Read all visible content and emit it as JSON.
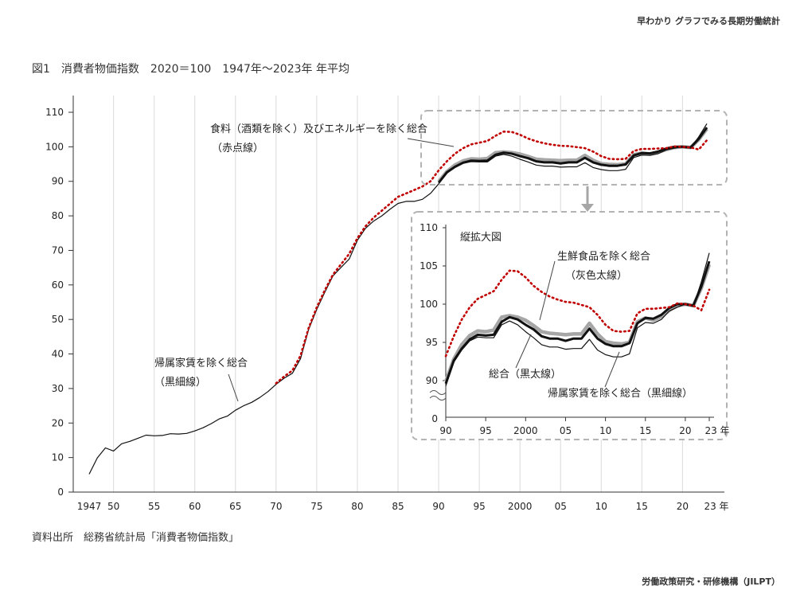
{
  "header": {
    "publication": "早わかり グラフでみる長期労働統計"
  },
  "figure": {
    "title": "図1　消費者物価指数　2020＝100　1947年～2023年 年平均",
    "source": "資料出所　総務省統計局「消費者物価指数」"
  },
  "footer": {
    "organization": "労働政策研究・研修機構（JILPT）"
  },
  "colors": {
    "total": "#111111",
    "core": "#a6a6a6",
    "excl_food_energy": "#c00000",
    "rent": "#111111",
    "grid": "#d9d9d9",
    "frame": "#b3b3b3"
  },
  "chart_data": [
    {
      "type": "line",
      "title": "",
      "ylim": [
        0,
        110
      ],
      "yticks": [
        0,
        10,
        20,
        30,
        40,
        50,
        60,
        70,
        80,
        90,
        100,
        110
      ],
      "xlim": [
        1947,
        2023
      ],
      "xtick_labels": [
        {
          "year": 1947,
          "label": "1947"
        },
        {
          "year": 1950,
          "label": "50"
        },
        {
          "year": 1955,
          "label": "55"
        },
        {
          "year": 1960,
          "label": "60"
        },
        {
          "year": 1965,
          "label": "65"
        },
        {
          "year": 1970,
          "label": "70"
        },
        {
          "year": 1975,
          "label": "75"
        },
        {
          "year": 1980,
          "label": "80"
        },
        {
          "year": 1985,
          "label": "85"
        },
        {
          "year": 1990,
          "label": "90"
        },
        {
          "year": 1995,
          "label": "95"
        },
        {
          "year": 2000,
          "label": "2000"
        },
        {
          "year": 2005,
          "label": "05"
        },
        {
          "year": 2010,
          "label": "10"
        },
        {
          "year": 2015,
          "label": "15"
        },
        {
          "year": 2020,
          "label": "20"
        },
        {
          "year": 2023,
          "label": "23 年"
        }
      ],
      "annotations": [
        {
          "text": "食料（酒類を除く）及びエネルギーを除く総合",
          "series": "excl_food_energy"
        },
        {
          "text": "（赤点線）",
          "series": "excl_food_energy"
        },
        {
          "text": "帰属家賃を除く総合",
          "series": "rent"
        },
        {
          "text": "（黒細線）",
          "series": "rent"
        }
      ],
      "series": [
        {
          "key": "rent",
          "style": "solid-thin",
          "x": [
            1947,
            1948,
            1949,
            1950,
            1951,
            1952,
            1953,
            1954,
            1955,
            1956,
            1957,
            1958,
            1959,
            1960,
            1961,
            1962,
            1963,
            1964,
            1965,
            1966,
            1967,
            1968,
            1969,
            1970,
            1971,
            1972,
            1973,
            1974,
            1975,
            1976,
            1977,
            1978,
            1979,
            1980,
            1981,
            1982,
            1983,
            1984,
            1985,
            1986,
            1987,
            1988,
            1989,
            1990,
            1991,
            1992,
            1993,
            1994,
            1995,
            1996,
            1997,
            1998,
            1999,
            2000,
            2001,
            2002,
            2003,
            2004,
            2005,
            2006,
            2007,
            2008,
            2009,
            2010,
            2011,
            2012,
            2013,
            2014,
            2015,
            2016,
            2017,
            2018,
            2019,
            2020,
            2021,
            2022,
            2023
          ],
          "values": [
            5.2,
            9.9,
            12.8,
            11.9,
            14.0,
            14.7,
            15.6,
            16.5,
            16.3,
            16.4,
            16.9,
            16.8,
            17.0,
            17.7,
            18.6,
            19.8,
            21.2,
            22.0,
            23.7,
            25.0,
            26.0,
            27.4,
            29.1,
            31.2,
            33.0,
            34.4,
            38.6,
            47.1,
            52.9,
            57.9,
            62.6,
            65.1,
            67.5,
            72.9,
            76.4,
            78.5,
            80.0,
            81.9,
            83.6,
            84.2,
            84.2,
            84.8,
            86.5,
            89.3,
            92.4,
            94.0,
            95.2,
            95.7,
            95.6,
            95.6,
            97.3,
            97.8,
            97.3,
            96.4,
            95.6,
            94.7,
            94.4,
            94.4,
            94.1,
            94.2,
            94.2,
            95.4,
            94.0,
            93.4,
            93.1,
            93.1,
            93.5,
            96.9,
            97.6,
            97.5,
            98.0,
            99.1,
            99.6,
            100.0,
            99.7,
            102.9,
            106.7
          ]
        },
        {
          "key": "total",
          "style": "solid-thick",
          "x": [
            1990,
            1991,
            1992,
            1993,
            1994,
            1995,
            1996,
            1997,
            1998,
            1999,
            2000,
            2001,
            2002,
            2003,
            2004,
            2005,
            2006,
            2007,
            2008,
            2009,
            2010,
            2011,
            2012,
            2013,
            2014,
            2015,
            2016,
            2017,
            2018,
            2019,
            2020,
            2021,
            2022,
            2023
          ],
          "values": [
            89.6,
            92.6,
            94.2,
            95.4,
            96.0,
            95.9,
            96.0,
            97.7,
            98.3,
            98.0,
            97.3,
            96.7,
            95.8,
            95.5,
            95.5,
            95.2,
            95.5,
            95.5,
            96.8,
            95.5,
            94.8,
            94.5,
            94.5,
            94.9,
            97.5,
            98.2,
            98.1,
            98.6,
            99.5,
            100.0,
            100.0,
            99.8,
            102.3,
            105.6
          ]
        },
        {
          "key": "core",
          "style": "solid-gray-thick",
          "x": [
            1990,
            1991,
            1992,
            1993,
            1994,
            1995,
            1996,
            1997,
            1998,
            1999,
            2000,
            2001,
            2002,
            2003,
            2004,
            2005,
            2006,
            2007,
            2008,
            2009,
            2010,
            2011,
            2012,
            2013,
            2014,
            2015,
            2016,
            2017,
            2018,
            2019,
            2020,
            2021,
            2022,
            2023
          ],
          "values": [
            89.9,
            92.8,
            94.7,
            95.9,
            96.5,
            96.4,
            96.6,
            98.3,
            98.5,
            98.3,
            97.9,
            97.2,
            96.4,
            96.2,
            96.1,
            96.0,
            96.1,
            96.1,
            97.5,
            96.1,
            95.1,
            94.9,
            94.8,
            95.0,
            97.7,
            98.2,
            97.9,
            98.4,
            99.2,
            99.8,
            100.0,
            99.8,
            102.1,
            105.2
          ]
        },
        {
          "key": "excl_food_energy",
          "style": "dotted-red",
          "x": [
            1970,
            1971,
            1972,
            1973,
            1974,
            1975,
            1976,
            1977,
            1978,
            1979,
            1980,
            1981,
            1982,
            1983,
            1984,
            1985,
            1986,
            1987,
            1988,
            1989,
            1990,
            1991,
            1992,
            1993,
            1994,
            1995,
            1996,
            1997,
            1998,
            1999,
            2000,
            2001,
            2002,
            2003,
            2004,
            2005,
            2006,
            2007,
            2008,
            2009,
            2010,
            2011,
            2012,
            2013,
            2014,
            2015,
            2016,
            2017,
            2018,
            2019,
            2020,
            2021,
            2022,
            2023
          ],
          "values": [
            31.5,
            33.5,
            35.2,
            39.5,
            47.5,
            53.5,
            58.5,
            63.0,
            66.0,
            69.0,
            73.5,
            77.0,
            79.5,
            81.5,
            83.5,
            85.5,
            86.5,
            87.5,
            88.5,
            90.0,
            93.2,
            95.8,
            98.0,
            99.6,
            100.7,
            101.2,
            101.7,
            103.2,
            104.4,
            104.3,
            103.5,
            102.4,
            101.6,
            101.0,
            100.6,
            100.3,
            100.2,
            99.9,
            99.6,
            98.6,
            97.3,
            96.5,
            96.4,
            96.5,
            98.8,
            99.4,
            99.4,
            99.5,
            99.6,
            100.1,
            100.0,
            99.8,
            99.2,
            101.9
          ]
        }
      ]
    },
    {
      "type": "line",
      "title": "縦拡大図",
      "ylim": [
        90,
        110
      ],
      "yticks": [
        90,
        95,
        100,
        105,
        110
      ],
      "ybreak_label": "0",
      "xlim": [
        1990,
        2023
      ],
      "xtick_labels": [
        {
          "year": 1990,
          "label": "90"
        },
        {
          "year": 1995,
          "label": "95"
        },
        {
          "year": 2000,
          "label": "2000"
        },
        {
          "year": 2005,
          "label": "05"
        },
        {
          "year": 2010,
          "label": "10"
        },
        {
          "year": 2015,
          "label": "15"
        },
        {
          "year": 2020,
          "label": "20"
        },
        {
          "year": 2023,
          "label": "23 年"
        }
      ],
      "annotations": [
        {
          "text": "生鮮食品を除く総合",
          "series": "core"
        },
        {
          "text": "（灰色太線）",
          "series": "core"
        },
        {
          "text": "総合（黒太線）",
          "series": "total"
        },
        {
          "text": "帰属家賃を除く総合（黒細線）",
          "series": "rent"
        }
      ]
    }
  ]
}
